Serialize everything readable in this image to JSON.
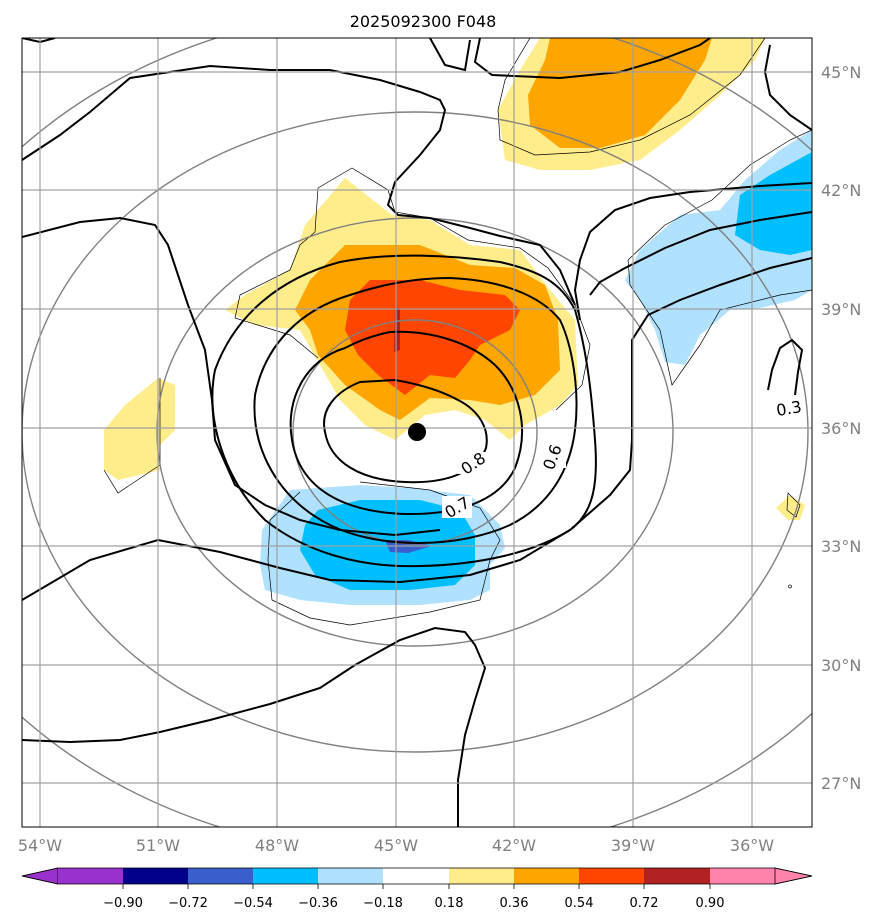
{
  "title": "2025092300 F048",
  "longitude_ticks": [
    "54°W",
    "51°W",
    "48°W",
    "45°W",
    "42°W",
    "39°W",
    "36°W"
  ],
  "latitude_ticks": [
    "45°N",
    "42°N",
    "39°N",
    "36°N",
    "33°N",
    "30°N",
    "27°N"
  ],
  "contour_labels": [
    "0.8",
    "0.7",
    "0.6",
    "0.3"
  ],
  "center_marker": {
    "lon": -44.4,
    "lat": 35.9
  },
  "colorbar": {
    "ticks": [
      "−0.90",
      "−0.72",
      "−0.54",
      "−0.36",
      "−0.18",
      "0.18",
      "0.36",
      "0.54",
      "0.72",
      "0.90"
    ],
    "colors": [
      "#9932cc",
      "#00008b",
      "#3a5fcd",
      "#00bfff",
      "#b0e2ff",
      "#ffffff",
      "#ffec8b",
      "#ffa500",
      "#ff4500",
      "#b22222",
      "#ff83aa"
    ]
  },
  "colors": {
    "grid": "#a0a0a0",
    "range_rings": "#808080",
    "contour": "#000000",
    "tick_text": "#808080"
  }
}
